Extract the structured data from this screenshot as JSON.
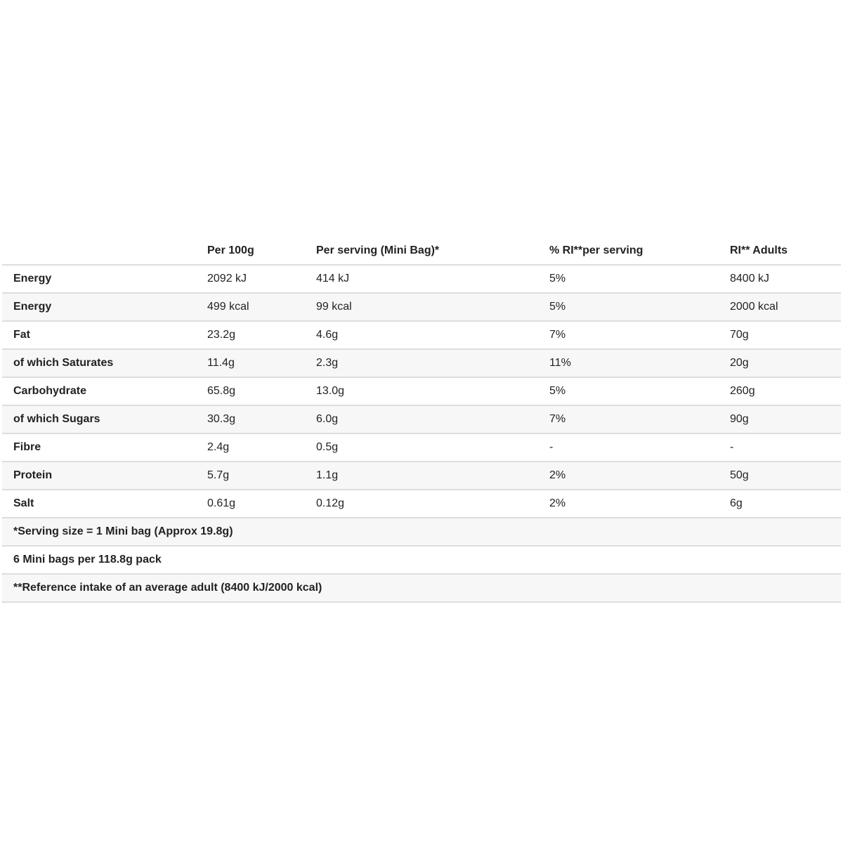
{
  "headers": [
    "",
    "Per 100g",
    "Per serving (Mini Bag)*",
    "% RI**per serving",
    "RI** Adults"
  ],
  "rows": [
    [
      "Energy",
      "2092 kJ",
      "414 kJ",
      "5%",
      "8400 kJ"
    ],
    [
      "Energy",
      "499 kcal",
      "99 kcal",
      "5%",
      "2000 kcal"
    ],
    [
      "Fat",
      "23.2g",
      "4.6g",
      "7%",
      "70g"
    ],
    [
      "of which Saturates",
      "11.4g",
      "2.3g",
      "11%",
      "20g"
    ],
    [
      "Carbohydrate",
      "65.8g",
      "13.0g",
      "5%",
      "260g"
    ],
    [
      "of which Sugars",
      "30.3g",
      "6.0g",
      "7%",
      "90g"
    ],
    [
      "Fibre",
      "2.4g",
      "0.5g",
      "-",
      "-"
    ],
    [
      "Protein",
      "5.7g",
      "1.1g",
      "2%",
      "50g"
    ],
    [
      "Salt",
      "0.61g",
      "0.12g",
      "2%",
      "6g"
    ]
  ],
  "notes": [
    "*Serving size = 1 Mini bag (Approx 19.8g)",
    "6 Mini bags per 118.8g pack",
    "**Reference intake of an average adult (8400 kJ/2000 kcal)"
  ]
}
